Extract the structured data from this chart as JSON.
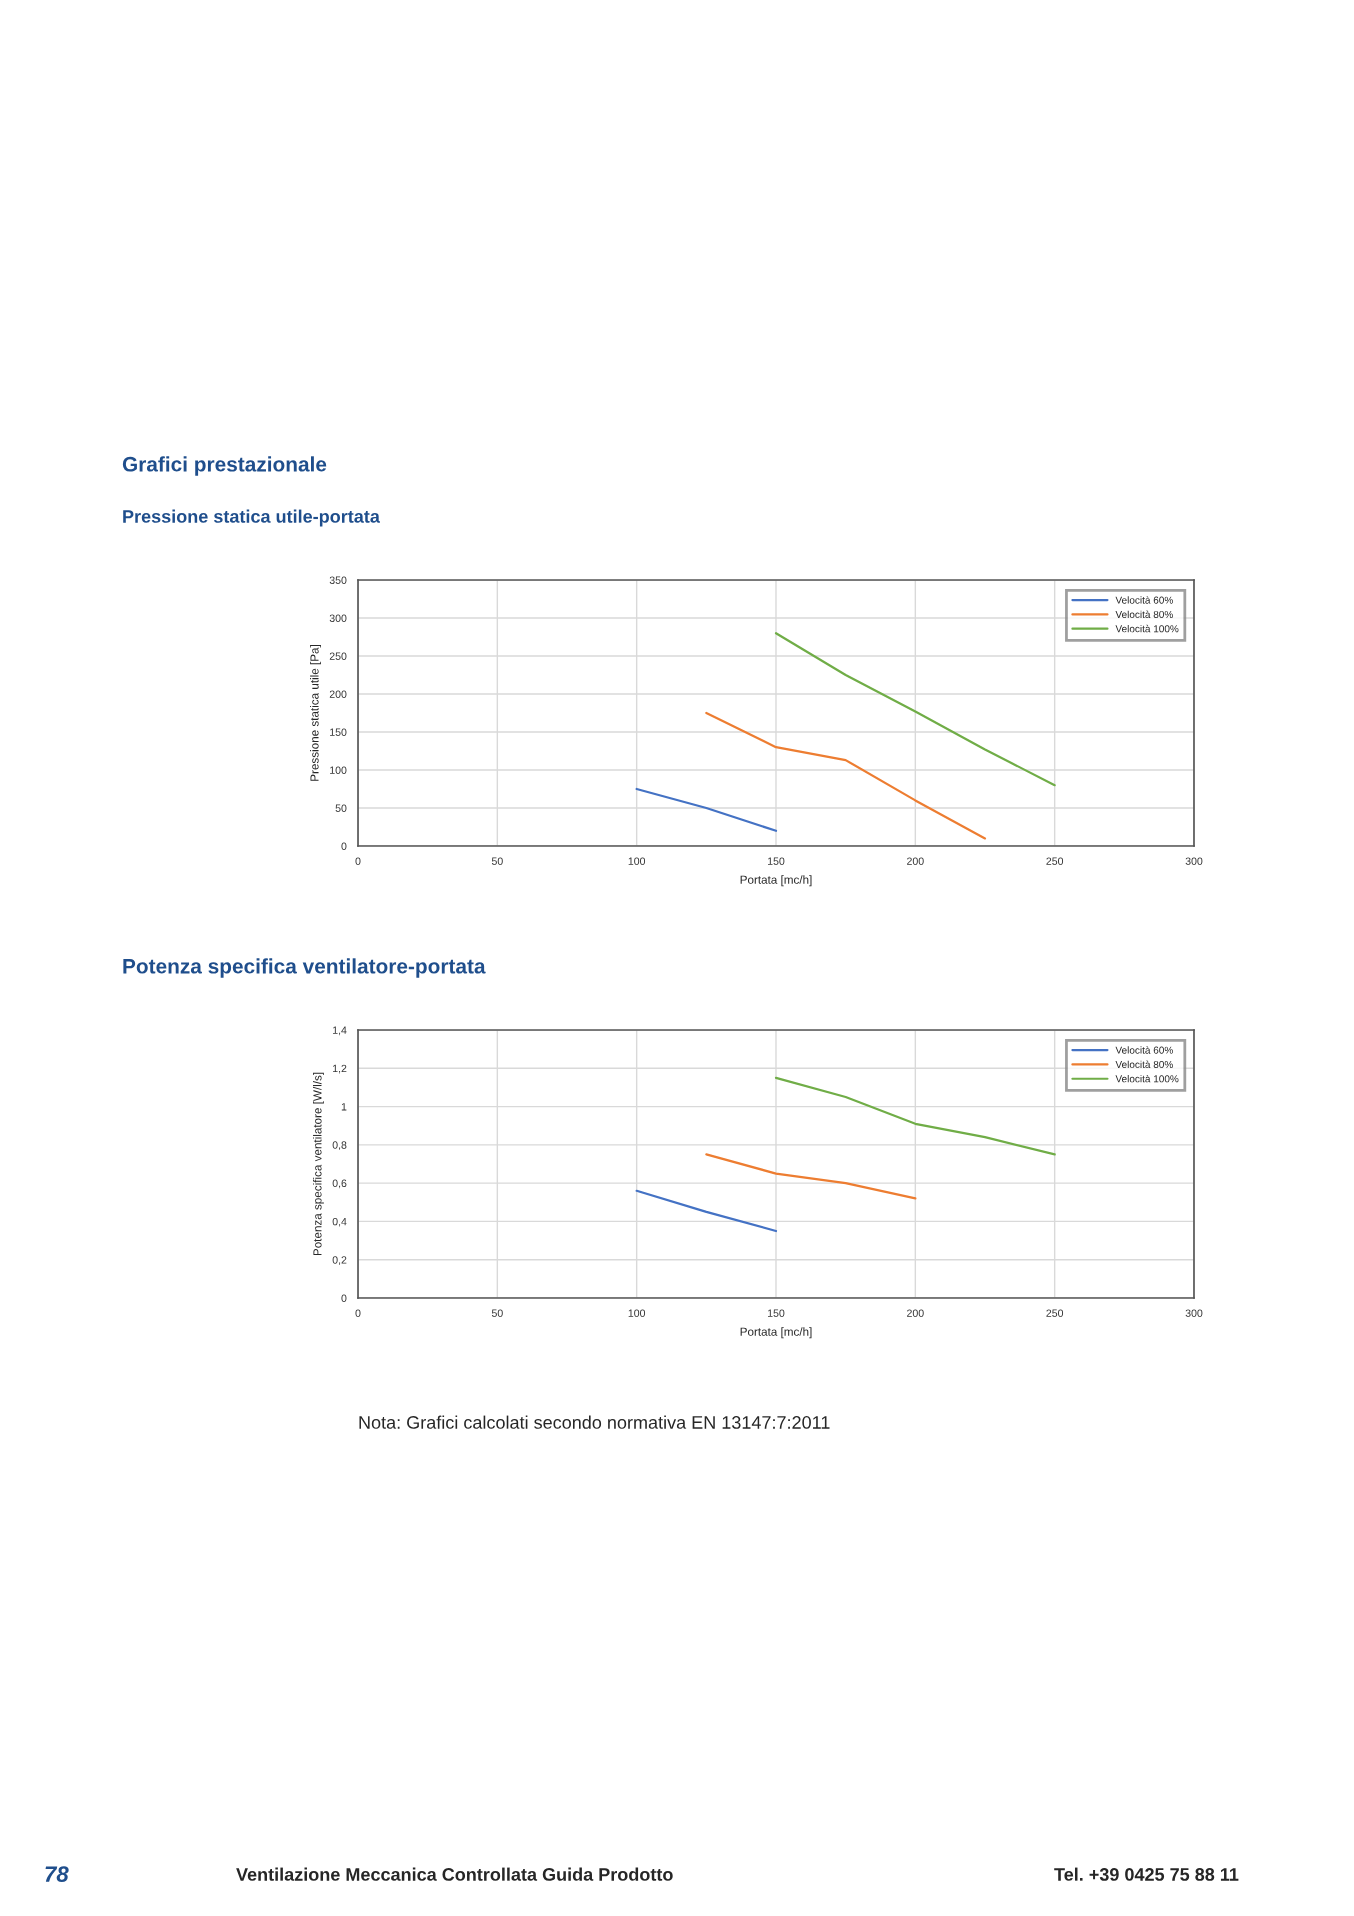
{
  "chart_data": [
    {
      "type": "line",
      "title": "Grafici prestazionale",
      "subtitle": "Pressione statica utile-portata",
      "xlabel": "Portata [mc/h]",
      "ylabel": "Pressione statica utile [Pa]",
      "xlim": [
        0,
        300
      ],
      "xticks": [
        0,
        50,
        100,
        150,
        200,
        250,
        300
      ],
      "ylim": [
        0,
        350
      ],
      "yticks": [
        0,
        50,
        100,
        150,
        200,
        250,
        300,
        350
      ],
      "grid": true,
      "legend": "top right",
      "series": [
        {
          "name": "Velocità 60%",
          "color": "#4472c4",
          "x": [
            100,
            125,
            150
          ],
          "values": [
            75,
            50,
            20
          ]
        },
        {
          "name": "Velocità 80%",
          "color": "#ed7d31",
          "x": [
            125,
            150,
            175,
            200,
            225
          ],
          "values": [
            175,
            130,
            113,
            60,
            10
          ]
        },
        {
          "name": "Velocità 100%",
          "color": "#70ad47",
          "x": [
            150,
            175,
            200,
            225,
            250
          ],
          "values": [
            280,
            225,
            177,
            127,
            80
          ]
        }
      ]
    },
    {
      "type": "line",
      "title": "Potenza specifica ventilatore-portata",
      "xlabel": "Portata [mc/h]",
      "ylabel": "Potenza specifica ventilatore [W/l/s]",
      "xlim": [
        0,
        300
      ],
      "xticks": [
        0,
        50,
        100,
        150,
        200,
        250,
        300
      ],
      "ylim": [
        0,
        1.4
      ],
      "yticks": [
        0,
        {
          "value": 0.2,
          "label": "0,2"
        },
        {
          "value": 0.4,
          "label": "0,4"
        },
        {
          "value": 0.6,
          "label": "0,6"
        },
        {
          "value": 0.8,
          "label": "0,8"
        },
        1,
        {
          "value": 1.2,
          "label": "1,2"
        },
        {
          "value": 1.4,
          "label": "1,4"
        }
      ],
      "grid": true,
      "legend": "top right",
      "series": [
        {
          "name": "Velocità 60%",
          "color": "#4472c4",
          "x": [
            100,
            125,
            150
          ],
          "values": [
            0.56,
            0.45,
            0.35
          ]
        },
        {
          "name": "Velocità 80%",
          "color": "#ed7d31",
          "x": [
            125,
            150,
            175,
            200
          ],
          "values": [
            0.75,
            0.65,
            0.6,
            0.52
          ]
        },
        {
          "name": "Velocità 100%",
          "color": "#70ad47",
          "x": [
            150,
            175,
            200,
            225,
            250
          ],
          "values": [
            1.15,
            1.05,
            0.91,
            0.84,
            0.75
          ]
        }
      ],
      "annotations": [
        "Nota: Grafici calcolati secondo normativa EN 13147:7:2011",
        "78",
        "Ventilazione Meccanica Controllata Guida Prodotto",
        "Tel. +39 0425 75 88 11"
      ]
    }
  ]
}
